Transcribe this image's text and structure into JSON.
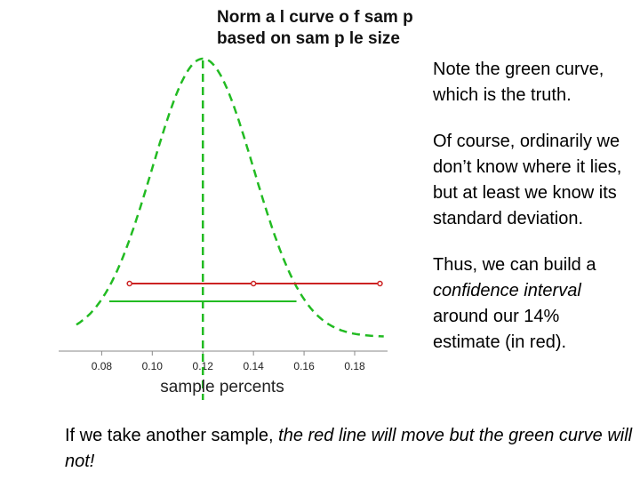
{
  "chart_data": {
    "type": "line",
    "title_lines": [
      "Norm a l curve o f sam p",
      "based on sam p le size"
    ],
    "xlabel": "sample percents",
    "x_ticks": [
      "0.08",
      "0.10",
      "0.12",
      "0.14",
      "0.16",
      "0.18"
    ],
    "x_tick_values": [
      0.08,
      0.1,
      0.12,
      0.14,
      0.16,
      0.18
    ],
    "xlim": [
      0.063,
      0.193
    ],
    "series": [
      {
        "style": "dashed",
        "color": "#22bb22",
        "mean": 0.12,
        "sd": 0.02
      }
    ],
    "mean_marker": {
      "x": 0.12,
      "color": "#22bb22",
      "style": "dashed"
    },
    "true_interval": {
      "x": [
        0.083,
        0.157
      ],
      "color": "#22bb22"
    },
    "sample_interval": {
      "x": [
        0.091,
        0.19
      ],
      "estimate": 0.14,
      "color": "#cc2222"
    }
  },
  "notes": {
    "p1": "Note the green curve, which is the truth.",
    "p2": "Of course, ordinarily we don’t know where it lies, but at least we know its standard deviation.",
    "p3_prefix": "Thus, we can build a ",
    "p3_em1": "confidence interval",
    "p3_suffix": " around our 14% estimate (in red)."
  },
  "footer": {
    "prefix": "If we take another sample, ",
    "emphasis": "the red line will move but the green curve will not!"
  }
}
